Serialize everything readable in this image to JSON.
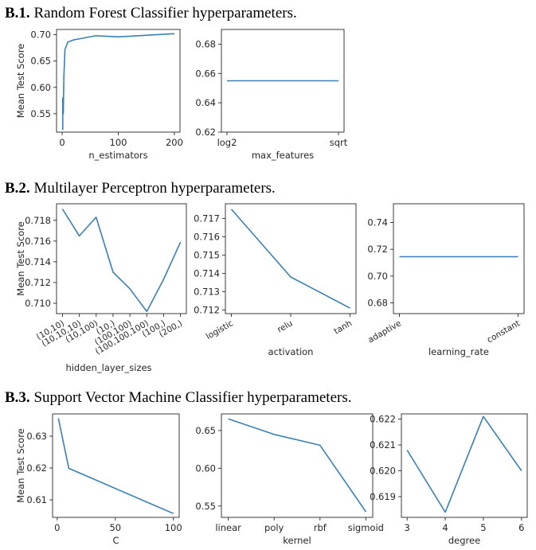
{
  "sections": [
    {
      "label": "B.1.",
      "title": "Random Forest Classifier hyperparameters."
    },
    {
      "label": "B.2.",
      "title": "Multilayer Perceptron hyperparameters."
    },
    {
      "label": "B.3.",
      "title": "Support Vector Machine Classifier hyperparameters."
    }
  ],
  "colors": {
    "line": "#3a7fb6",
    "axis": "#262626",
    "text": "#262626"
  },
  "chart_data": [
    {
      "id": "rf-n-estimators",
      "type": "line",
      "xlabel": "n_estimators",
      "ylabel": "Mean Test Score",
      "xlim": [
        -10,
        210
      ],
      "ylim": [
        0.515,
        0.71
      ],
      "xticks": [
        0,
        100,
        200
      ],
      "xtick_labels": [
        "0",
        "100",
        "200"
      ],
      "yticks": [
        0.55,
        0.6,
        0.65,
        0.7
      ],
      "ytick_labels": [
        "0.55",
        "0.60",
        "0.65",
        "0.70"
      ],
      "x": [
        1,
        1,
        2,
        3,
        5,
        10,
        20,
        30,
        60,
        100,
        200
      ],
      "y": [
        0.519,
        0.58,
        0.55,
        0.62,
        0.672,
        0.686,
        0.69,
        0.692,
        0.698,
        0.696,
        0.702
      ]
    },
    {
      "id": "rf-max-features",
      "type": "line",
      "xlabel": "max_features",
      "ylabel": "",
      "categories": [
        "log2",
        "sqrt"
      ],
      "ylim": [
        0.62,
        0.69
      ],
      "yticks": [
        0.62,
        0.64,
        0.66,
        0.68
      ],
      "ytick_labels": [
        "0.62",
        "0.64",
        "0.66",
        "0.68"
      ],
      "y": [
        0.655,
        0.655
      ]
    },
    {
      "id": "mlp-hidden-layer-sizes",
      "type": "line",
      "xlabel": "hidden_layer_sizes",
      "ylabel": "Mean Test Score",
      "categories": [
        "(10,10)",
        "(10,10,10)",
        "(10,100)",
        "(10,)",
        "(100,100)",
        "(100,100,100)",
        "(100,)",
        "(200,)"
      ],
      "tick_rotation": -30,
      "ylim": [
        0.709,
        0.7196
      ],
      "yticks": [
        0.71,
        0.712,
        0.714,
        0.716,
        0.718
      ],
      "ytick_labels": [
        "0.710",
        "0.712",
        "0.714",
        "0.716",
        "0.718"
      ],
      "y": [
        0.7191,
        0.7165,
        0.7183,
        0.713,
        0.7114,
        0.7092,
        0.7123,
        0.7159
      ]
    },
    {
      "id": "mlp-activation",
      "type": "line",
      "xlabel": "activation",
      "ylabel": "",
      "categories": [
        "logistic",
        "relu",
        "tanh"
      ],
      "tick_rotation": -30,
      "ylim": [
        0.7118,
        0.7178
      ],
      "yticks": [
        0.712,
        0.713,
        0.714,
        0.715,
        0.716,
        0.717
      ],
      "ytick_labels": [
        "0.712",
        "0.713",
        "0.714",
        "0.715",
        "0.716",
        "0.717"
      ],
      "y": [
        0.7175,
        0.7138,
        0.7121
      ]
    },
    {
      "id": "mlp-learning-rate",
      "type": "line",
      "xlabel": "learning_rate",
      "ylabel": "",
      "categories": [
        "adaptive",
        "constant"
      ],
      "tick_rotation": -30,
      "ylim": [
        0.672,
        0.754
      ],
      "yticks": [
        0.68,
        0.7,
        0.72,
        0.74
      ],
      "ytick_labels": [
        "0.68",
        "0.70",
        "0.72",
        "0.74"
      ],
      "y": [
        0.7145,
        0.7145
      ]
    },
    {
      "id": "svm-c",
      "type": "line",
      "xlabel": "C",
      "ylabel": "Mean Test Score",
      "xlim": [
        -4,
        105
      ],
      "ylim": [
        0.6045,
        0.637
      ],
      "xticks": [
        0,
        50,
        100
      ],
      "xtick_labels": [
        "0",
        "50",
        "100"
      ],
      "yticks": [
        0.61,
        0.62,
        0.63
      ],
      "ytick_labels": [
        "0.61",
        "0.62",
        "0.63"
      ],
      "x": [
        1,
        10,
        100
      ],
      "y": [
        0.6356,
        0.6199,
        0.6057
      ]
    },
    {
      "id": "svm-kernel",
      "type": "line",
      "xlabel": "kernel",
      "ylabel": "",
      "categories": [
        "linear",
        "poly",
        "rbf",
        "sigmoid"
      ],
      "ylim": [
        0.535,
        0.672
      ],
      "yticks": [
        0.55,
        0.6,
        0.65
      ],
      "ytick_labels": [
        "0.55",
        "0.60",
        "0.65"
      ],
      "y": [
        0.6655,
        0.6448,
        0.6305,
        0.5425
      ]
    },
    {
      "id": "svm-degree",
      "type": "line",
      "xlabel": "degree",
      "ylabel": "",
      "categories": [
        "3",
        "4",
        "5",
        "6"
      ],
      "ylim": [
        0.6182,
        0.6222
      ],
      "yticks": [
        0.619,
        0.62,
        0.621,
        0.622
      ],
      "ytick_labels": [
        "0.619",
        "0.620",
        "0.621",
        "0.622"
      ],
      "y": [
        0.6208,
        0.6184,
        0.6221,
        0.62
      ]
    }
  ]
}
